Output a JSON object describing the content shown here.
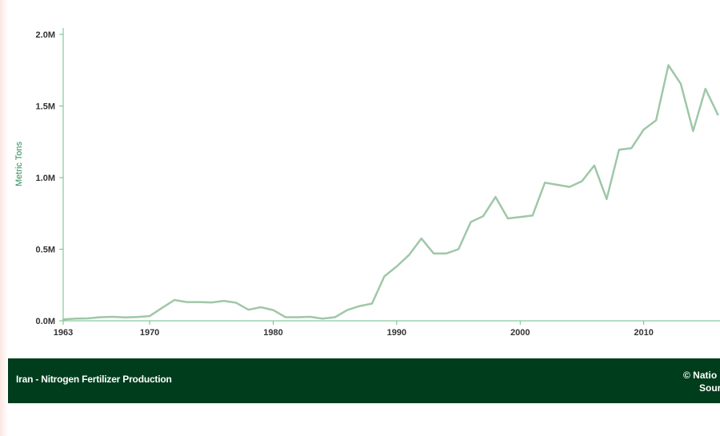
{
  "footer": {
    "title": "Iran - Nitrogen Fertilizer Production",
    "credit": "© Natio",
    "source": "Sour"
  },
  "colors": {
    "line": "#9fc7a8",
    "axis": "#6bbf86",
    "footer_bg": "#003d1c",
    "ylabel": "#2e8b57"
  },
  "chart_data": {
    "type": "line",
    "title": "Iran - Nitrogen Fertilizer Production",
    "xlabel": "",
    "ylabel": "Metric Tons",
    "xlim": [
      1963,
      2016
    ],
    "ylim": [
      0,
      2000000
    ],
    "x_ticks": [
      1963,
      1970,
      1980,
      1990,
      2000,
      2010
    ],
    "y_ticks": [
      {
        "value": 0,
        "label": "0.0M"
      },
      {
        "value": 500000,
        "label": "0.5M"
      },
      {
        "value": 1000000,
        "label": "1.0M"
      },
      {
        "value": 1500000,
        "label": "1.5M"
      },
      {
        "value": 2000000,
        "label": "2.0M"
      }
    ],
    "grid": false,
    "series": [
      {
        "name": "",
        "x": [
          1963,
          1964,
          1965,
          1966,
          1967,
          1968,
          1969,
          1970,
          1971,
          1972,
          1973,
          1974,
          1975,
          1976,
          1977,
          1978,
          1979,
          1980,
          1981,
          1982,
          1983,
          1984,
          1985,
          1986,
          1987,
          1988,
          1989,
          1990,
          1991,
          1992,
          1993,
          1994,
          1995,
          1996,
          1997,
          1998,
          1999,
          2000,
          2001,
          2002,
          2003,
          2004,
          2005,
          2006,
          2007,
          2008,
          2009,
          2010,
          2011,
          2012,
          2013,
          2014,
          2015,
          2016
        ],
        "values": [
          10000,
          15000,
          17000,
          25000,
          28000,
          24000,
          27000,
          33000,
          90000,
          145000,
          131000,
          131000,
          128000,
          139000,
          126000,
          77000,
          95000,
          75000,
          25000,
          25000,
          28000,
          15000,
          25000,
          75000,
          103000,
          120000,
          310000,
          380000,
          460000,
          575000,
          470000,
          470000,
          500000,
          690000,
          730000,
          865000,
          715000,
          725000,
          735000,
          965000,
          950000,
          935000,
          975000,
          1085000,
          850000,
          1195000,
          1205000,
          1335000,
          1400000,
          1785000,
          1655000,
          1325000,
          1620000,
          1440000
        ]
      }
    ]
  }
}
